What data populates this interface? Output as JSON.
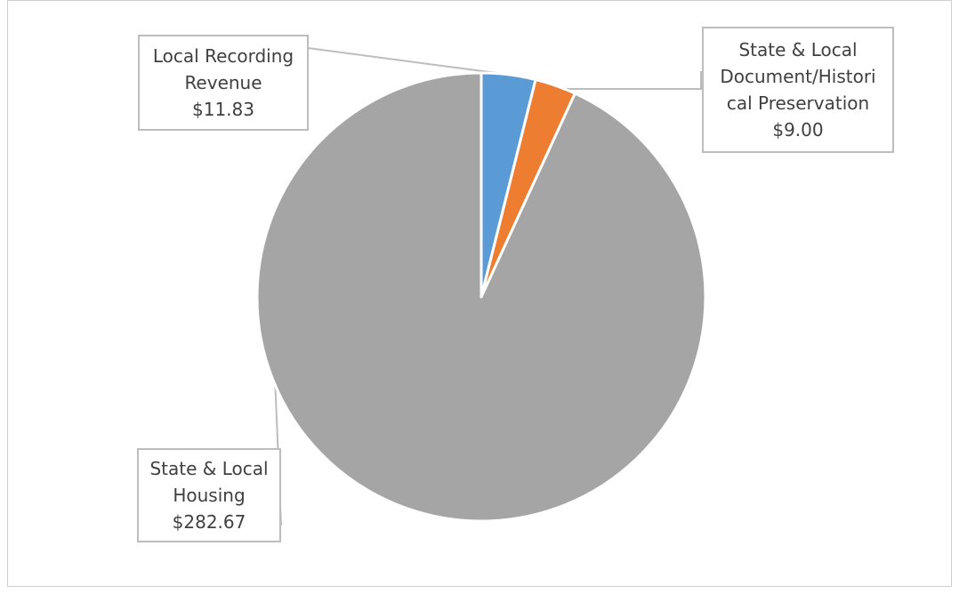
{
  "title": "",
  "chart_data": {
    "type": "pie",
    "title": "",
    "slices": [
      {
        "name": "Local Recording Revenue",
        "value": 11.83,
        "color": "#5b9bd5",
        "label_lines": [
          "Local Recording",
          "Revenue",
          "$11.83"
        ]
      },
      {
        "name": "State & Local Document/Historical Preservation",
        "value": 9.0,
        "color": "#ed7d31",
        "label_lines": [
          "State & Local",
          "Document/Histori",
          "cal Preservation",
          "$9.00"
        ]
      },
      {
        "name": "State & Local Housing",
        "value": 282.67,
        "color": "#a5a5a5",
        "label_lines": [
          "State & Local",
          "Housing",
          "$282.67"
        ]
      }
    ],
    "start_angle": "12 o'clock",
    "direction": "clockwise",
    "legend": "none"
  }
}
